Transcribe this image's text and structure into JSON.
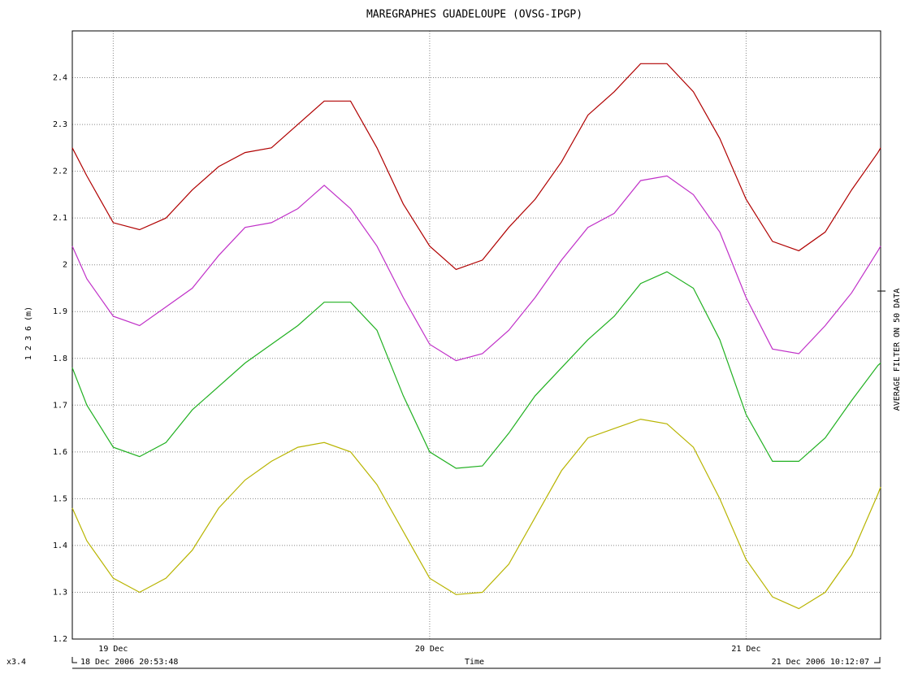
{
  "chart_data": {
    "type": "line",
    "title": "MAREGRAPHES GUADELOUPE (OVSG-IPGP)",
    "y_label": "1 2 3 6 (m)",
    "x_label": "Time",
    "right_label": "AVERAGE FILTER ON 50 DATA",
    "scale_label": "x3.4",
    "start_label": "18 Dec 2006 20:53:48",
    "end_label": "21 Dec 2006 10:12:07",
    "x": [
      "2006-12-18T20:53:48",
      "2006-12-18T22:00",
      "2006-12-19T00:00",
      "2006-12-19T02:00",
      "2006-12-19T04:00",
      "2006-12-19T06:00",
      "2006-12-19T08:00",
      "2006-12-19T10:00",
      "2006-12-19T12:00",
      "2006-12-19T14:00",
      "2006-12-19T16:00",
      "2006-12-19T18:00",
      "2006-12-19T20:00",
      "2006-12-19T22:00",
      "2006-12-20T00:00",
      "2006-12-20T02:00",
      "2006-12-20T04:00",
      "2006-12-20T06:00",
      "2006-12-20T08:00",
      "2006-12-20T10:00",
      "2006-12-20T12:00",
      "2006-12-20T14:00",
      "2006-12-20T16:00",
      "2006-12-20T18:00",
      "2006-12-20T20:00",
      "2006-12-20T22:00",
      "2006-12-21T00:00",
      "2006-12-21T02:00",
      "2006-12-21T04:00",
      "2006-12-21T06:00",
      "2006-12-21T08:00",
      "2006-12-21T10:00",
      "2006-12-21T10:12:07"
    ],
    "series": [
      {
        "color": "#b00000",
        "values": [
          2.25,
          2.19,
          2.09,
          2.075,
          2.1,
          2.16,
          2.21,
          2.24,
          2.25,
          2.3,
          2.35,
          2.35,
          2.25,
          2.13,
          2.04,
          1.99,
          2.01,
          2.08,
          2.14,
          2.22,
          2.32,
          2.37,
          2.43,
          2.43,
          2.37,
          2.27,
          2.14,
          2.05,
          2.03,
          2.07,
          2.16,
          2.24,
          2.25
        ]
      },
      {
        "color": "#c030c8",
        "values": [
          2.04,
          1.97,
          1.89,
          1.87,
          1.91,
          1.95,
          2.02,
          2.08,
          2.09,
          2.12,
          2.17,
          2.12,
          2.04,
          1.93,
          1.83,
          1.795,
          1.81,
          1.86,
          1.93,
          2.01,
          2.08,
          2.11,
          2.18,
          2.19,
          2.15,
          2.07,
          1.93,
          1.82,
          1.81,
          1.87,
          1.94,
          2.03,
          2.04
        ]
      },
      {
        "color": "#20b020",
        "values": [
          1.78,
          1.7,
          1.61,
          1.59,
          1.62,
          1.69,
          1.74,
          1.79,
          1.83,
          1.87,
          1.92,
          1.92,
          1.86,
          1.72,
          1.6,
          1.565,
          1.57,
          1.64,
          1.72,
          1.78,
          1.84,
          1.89,
          1.96,
          1.985,
          1.95,
          1.84,
          1.68,
          1.58,
          1.58,
          1.63,
          1.71,
          1.785,
          1.79
        ]
      },
      {
        "color": "#b8b400",
        "values": [
          1.48,
          1.41,
          1.33,
          1.3,
          1.33,
          1.39,
          1.48,
          1.54,
          1.58,
          1.61,
          1.62,
          1.6,
          1.53,
          1.43,
          1.33,
          1.295,
          1.3,
          1.36,
          1.46,
          1.56,
          1.63,
          1.65,
          1.67,
          1.66,
          1.61,
          1.5,
          1.37,
          1.29,
          1.265,
          1.3,
          1.38,
          1.51,
          1.525
        ]
      }
    ],
    "xlim": [
      "2006-12-18T20:53:48",
      "2006-12-21T10:12:07"
    ],
    "xticks": [
      {
        "value": "2006-12-19T00:00",
        "label": "19 Dec"
      },
      {
        "value": "2006-12-20T00:00",
        "label": "20 Dec"
      },
      {
        "value": "2006-12-21T00:00",
        "label": "21 Dec"
      }
    ],
    "ylim": [
      1.2,
      2.5
    ],
    "yticks": [
      {
        "value": 1.2,
        "label": "1.2"
      },
      1.3,
      1.4,
      1.5,
      1.6,
      1.7,
      1.8,
      1.9,
      2,
      2.1,
      2.2,
      2.3,
      2.4
    ],
    "grid": true
  }
}
